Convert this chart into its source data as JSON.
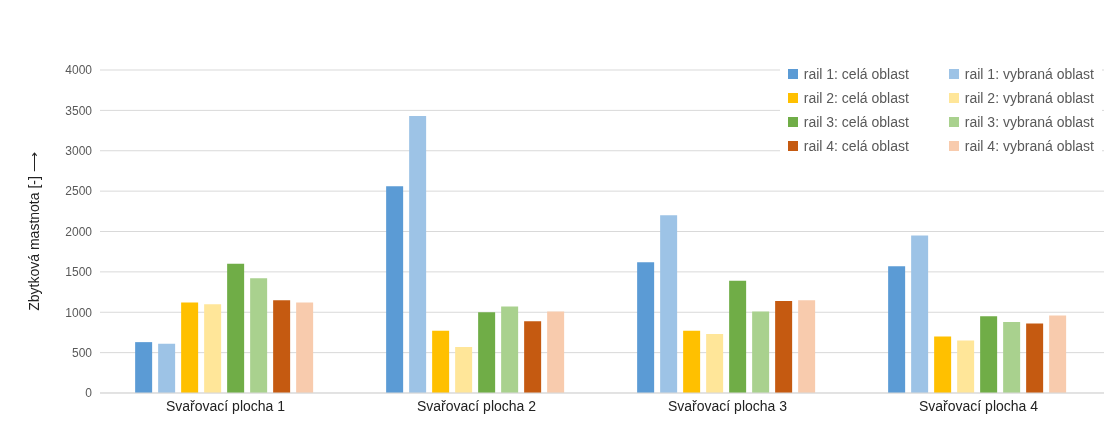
{
  "chart_data": {
    "type": "bar",
    "ylabel": "Zbytková mastnota [-] ⟶",
    "categories": [
      "Svařovací plocha 1",
      "Svařovací plocha 2",
      "Svařovací plocha 3",
      "Svařovací plocha 4"
    ],
    "series": [
      {
        "name": "rail 1: celá oblast",
        "color": "#5b9bd5",
        "values": [
          630,
          2560,
          1620,
          1570
        ]
      },
      {
        "name": "rail 1: vybraná oblast",
        "color": "#9dc3e6",
        "values": [
          610,
          3430,
          2200,
          1950
        ]
      },
      {
        "name": "rail 2: celá oblast",
        "color": "#ffc000",
        "values": [
          1120,
          770,
          770,
          700
        ]
      },
      {
        "name": "rail 2: vybraná oblast",
        "color": "#ffe699",
        "values": [
          1100,
          570,
          730,
          650
        ]
      },
      {
        "name": "rail 3: celá oblast",
        "color": "#70ad47",
        "values": [
          1600,
          1000,
          1390,
          950
        ]
      },
      {
        "name": "rail 3: vybraná oblast",
        "color": "#a9d18e",
        "values": [
          1420,
          1070,
          1010,
          880
        ]
      },
      {
        "name": "rail 4: celá oblast",
        "color": "#c55a11",
        "values": [
          1150,
          890,
          1140,
          860
        ]
      },
      {
        "name": "rail 4: vybraná oblast",
        "color": "#f8cbad",
        "values": [
          1120,
          1010,
          1150,
          960
        ]
      }
    ],
    "ylim": [
      0,
      4000
    ],
    "yticks": [
      0,
      500,
      1000,
      1500,
      2000,
      2500,
      3000,
      3500,
      4000
    ],
    "grid": "y",
    "legend": "top right"
  }
}
